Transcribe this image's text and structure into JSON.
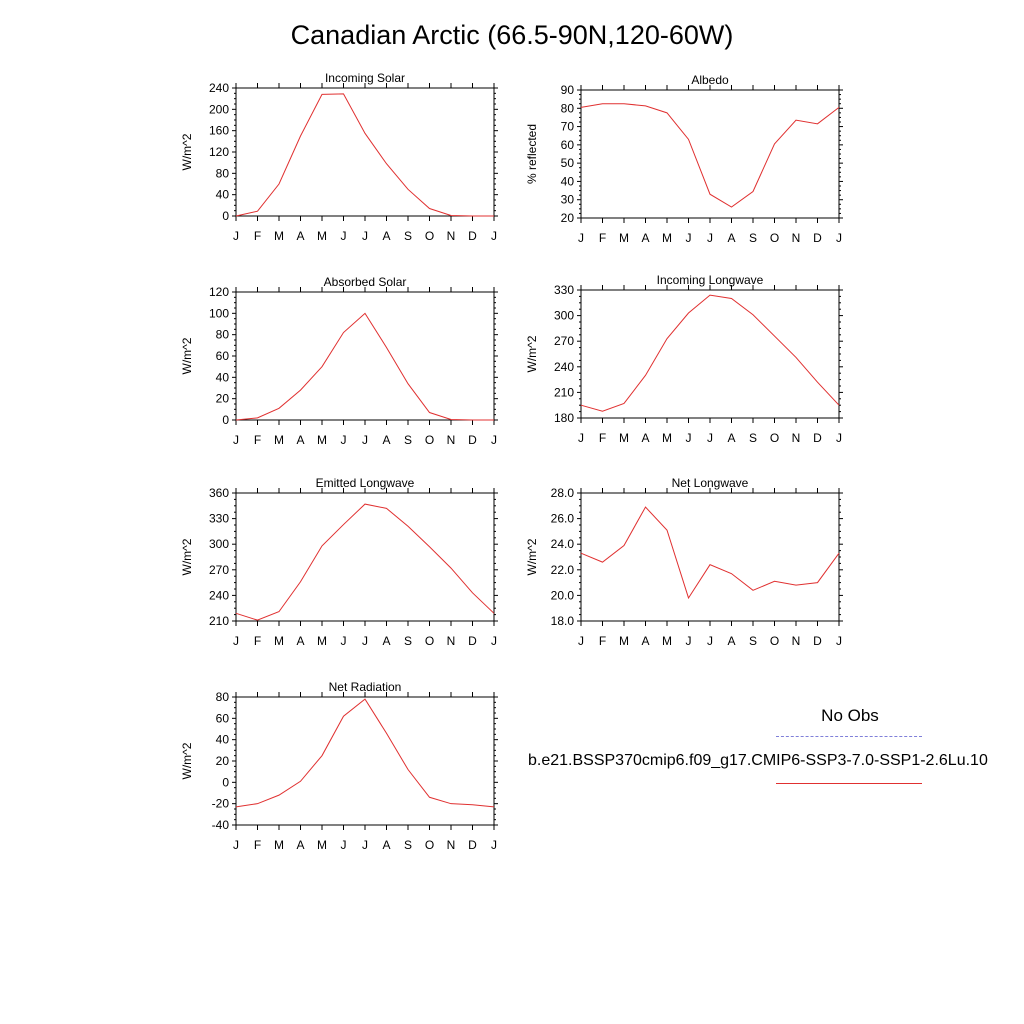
{
  "title": "Canadian Arctic (66.5-90N,120-60W)",
  "legend": {
    "obs_label": "No Obs",
    "case_label": "b.e21.BSSP370cmip6.f09_g17.CMIP6-SSP3-7.0-SSP1-2.6Lu.10",
    "obs_color": "#7f7fd9",
    "case_color": "#e03030"
  },
  "chart_data": [
    {
      "type": "line",
      "title": "Incoming Solar",
      "ylabel": "W/m^2",
      "categories": [
        "J",
        "F",
        "M",
        "A",
        "M",
        "J",
        "J",
        "A",
        "S",
        "O",
        "N",
        "D",
        "J"
      ],
      "ylim": [
        0,
        240
      ],
      "yticks": [
        0,
        40,
        80,
        120,
        160,
        200,
        240
      ],
      "ytick_labels": [
        "0",
        "40",
        "80",
        "120",
        "160",
        "200",
        "240"
      ],
      "series": [
        {
          "values": [
            0,
            9,
            60,
            150,
            228,
            229,
            155,
            98,
            50,
            14,
            1,
            0,
            0
          ]
        }
      ]
    },
    {
      "type": "line",
      "title": "Albedo",
      "ylabel": "% reflected",
      "categories": [
        "J",
        "F",
        "M",
        "A",
        "M",
        "J",
        "J",
        "A",
        "S",
        "O",
        "N",
        "D",
        "J"
      ],
      "ylim": [
        20,
        90
      ],
      "yticks": [
        20,
        30,
        40,
        50,
        60,
        70,
        80,
        90
      ],
      "ytick_labels": [
        "20",
        "30",
        "40",
        "50",
        "60",
        "70",
        "80",
        "90"
      ],
      "series": [
        {
          "values": [
            80.5,
            82.5,
            82.5,
            81.3,
            77.5,
            63,
            33,
            26,
            34.5,
            60.5,
            73.5,
            71.5,
            80.5
          ]
        }
      ]
    },
    {
      "type": "line",
      "title": "Absorbed Solar",
      "ylabel": "W/m^2",
      "categories": [
        "J",
        "F",
        "M",
        "A",
        "M",
        "J",
        "J",
        "A",
        "S",
        "O",
        "N",
        "D",
        "J"
      ],
      "ylim": [
        0,
        120
      ],
      "yticks": [
        0,
        20,
        40,
        60,
        80,
        100,
        120
      ],
      "ytick_labels": [
        "0",
        "20",
        "40",
        "60",
        "80",
        "100",
        "120"
      ],
      "series": [
        {
          "values": [
            0,
            2,
            11,
            28,
            50,
            82,
            100,
            68,
            34,
            7,
            0.5,
            0,
            0
          ]
        }
      ]
    },
    {
      "type": "line",
      "title": "Incoming Longwave",
      "ylabel": "W/m^2",
      "categories": [
        "J",
        "F",
        "M",
        "A",
        "M",
        "J",
        "J",
        "A",
        "S",
        "O",
        "N",
        "D",
        "J"
      ],
      "ylim": [
        180,
        330
      ],
      "yticks": [
        180,
        210,
        240,
        270,
        300,
        330
      ],
      "ytick_labels": [
        "180",
        "210",
        "240",
        "270",
        "300",
        "330"
      ],
      "series": [
        {
          "values": [
            195,
            188,
            197,
            230,
            273,
            303,
            324,
            320,
            301,
            276,
            251,
            222,
            195
          ]
        }
      ]
    },
    {
      "type": "line",
      "title": "Emitted Longwave",
      "ylabel": "W/m^2",
      "categories": [
        "J",
        "F",
        "M",
        "A",
        "M",
        "J",
        "J",
        "A",
        "S",
        "O",
        "N",
        "D",
        "J"
      ],
      "ylim": [
        210,
        360
      ],
      "yticks": [
        210,
        240,
        270,
        300,
        330,
        360
      ],
      "ytick_labels": [
        "210",
        "240",
        "270",
        "300",
        "330",
        "360"
      ],
      "series": [
        {
          "values": [
            219,
            211,
            221,
            256,
            298,
            323,
            347,
            342,
            321,
            297,
            272,
            243,
            219
          ]
        }
      ]
    },
    {
      "type": "line",
      "title": "Net Longwave",
      "ylabel": "W/m^2",
      "categories": [
        "J",
        "F",
        "M",
        "A",
        "M",
        "J",
        "J",
        "A",
        "S",
        "O",
        "N",
        "D",
        "J"
      ],
      "ylim": [
        18,
        28
      ],
      "yticks": [
        18,
        20,
        22,
        24,
        26,
        28
      ],
      "ytick_labels": [
        "18.0",
        "20.0",
        "22.0",
        "24.0",
        "26.0",
        "28.0"
      ],
      "series": [
        {
          "values": [
            23.3,
            22.6,
            23.9,
            26.9,
            25.1,
            19.8,
            22.4,
            21.7,
            20.4,
            21.1,
            20.8,
            21.0,
            23.3
          ]
        }
      ]
    },
    {
      "type": "line",
      "title": "Net Radiation",
      "ylabel": "W/m^2",
      "categories": [
        "J",
        "F",
        "M",
        "A",
        "M",
        "J",
        "J",
        "A",
        "S",
        "O",
        "N",
        "D",
        "J"
      ],
      "ylim": [
        -40,
        80
      ],
      "yticks": [
        -40,
        -20,
        0,
        20,
        40,
        60,
        80
      ],
      "ytick_labels": [
        "-40",
        "-20",
        "0",
        "20",
        "40",
        "60",
        "80"
      ],
      "series": [
        {
          "values": [
            -23,
            -20,
            -12,
            1,
            25,
            62,
            78,
            46,
            12,
            -14,
            -20,
            -21,
            -23
          ]
        }
      ]
    }
  ]
}
